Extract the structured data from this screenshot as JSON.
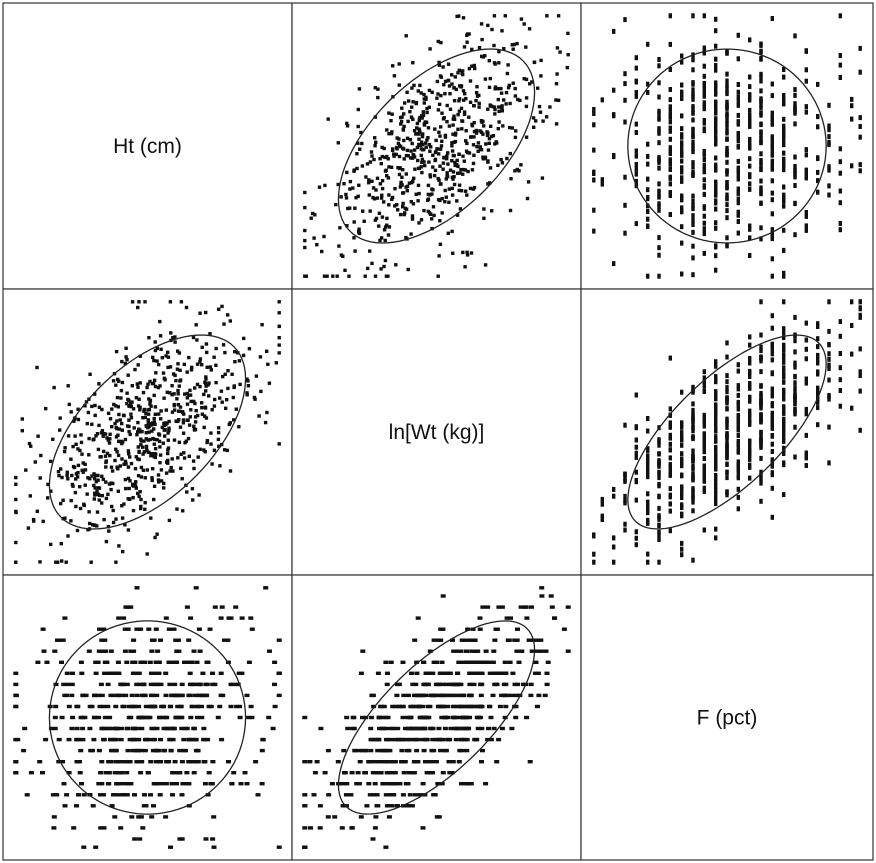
{
  "chart_data": {
    "type": "scatter",
    "layout": "scatterplot-matrix",
    "grid": false,
    "variables": [
      {
        "label": "Ht (cm)"
      },
      {
        "label": "ln[Wt (kg)]"
      },
      {
        "label": "F (pct)"
      }
    ],
    "panels": [
      {
        "row": 1,
        "col": 2,
        "x_var": "ln[Wt (kg)]",
        "y_var": "Ht (cm)",
        "correlation": 0.55,
        "n_points": 700,
        "x_levels": 0,
        "y_levels": 0
      },
      {
        "row": 1,
        "col": 3,
        "x_var": "F (pct)",
        "y_var": "Ht (cm)",
        "correlation": 0.0,
        "n_points": 600,
        "x_levels": 24,
        "y_levels": 0
      },
      {
        "row": 2,
        "col": 1,
        "x_var": "Ht (cm)",
        "y_var": "ln[Wt (kg)]",
        "correlation": 0.55,
        "n_points": 700,
        "x_levels": 0,
        "y_levels": 0
      },
      {
        "row": 2,
        "col": 3,
        "x_var": "F (pct)",
        "y_var": "ln[Wt (kg)]",
        "correlation": 0.7,
        "n_points": 650,
        "x_levels": 24,
        "y_levels": 0
      },
      {
        "row": 3,
        "col": 1,
        "x_var": "Ht (cm)",
        "y_var": "F (pct)",
        "correlation": 0.0,
        "n_points": 600,
        "x_levels": 0,
        "y_levels": 24
      },
      {
        "row": 3,
        "col": 2,
        "x_var": "ln[Wt (kg)]",
        "y_var": "F (pct)",
        "correlation": 0.7,
        "n_points": 650,
        "x_levels": 0,
        "y_levels": 24
      }
    ],
    "ellipse": "concentration ellipse drawn in each off-diagonal panel",
    "colors": {
      "point": "#111111",
      "ellipse": "#222222",
      "border": "#333333",
      "background": "#ffffff"
    }
  }
}
